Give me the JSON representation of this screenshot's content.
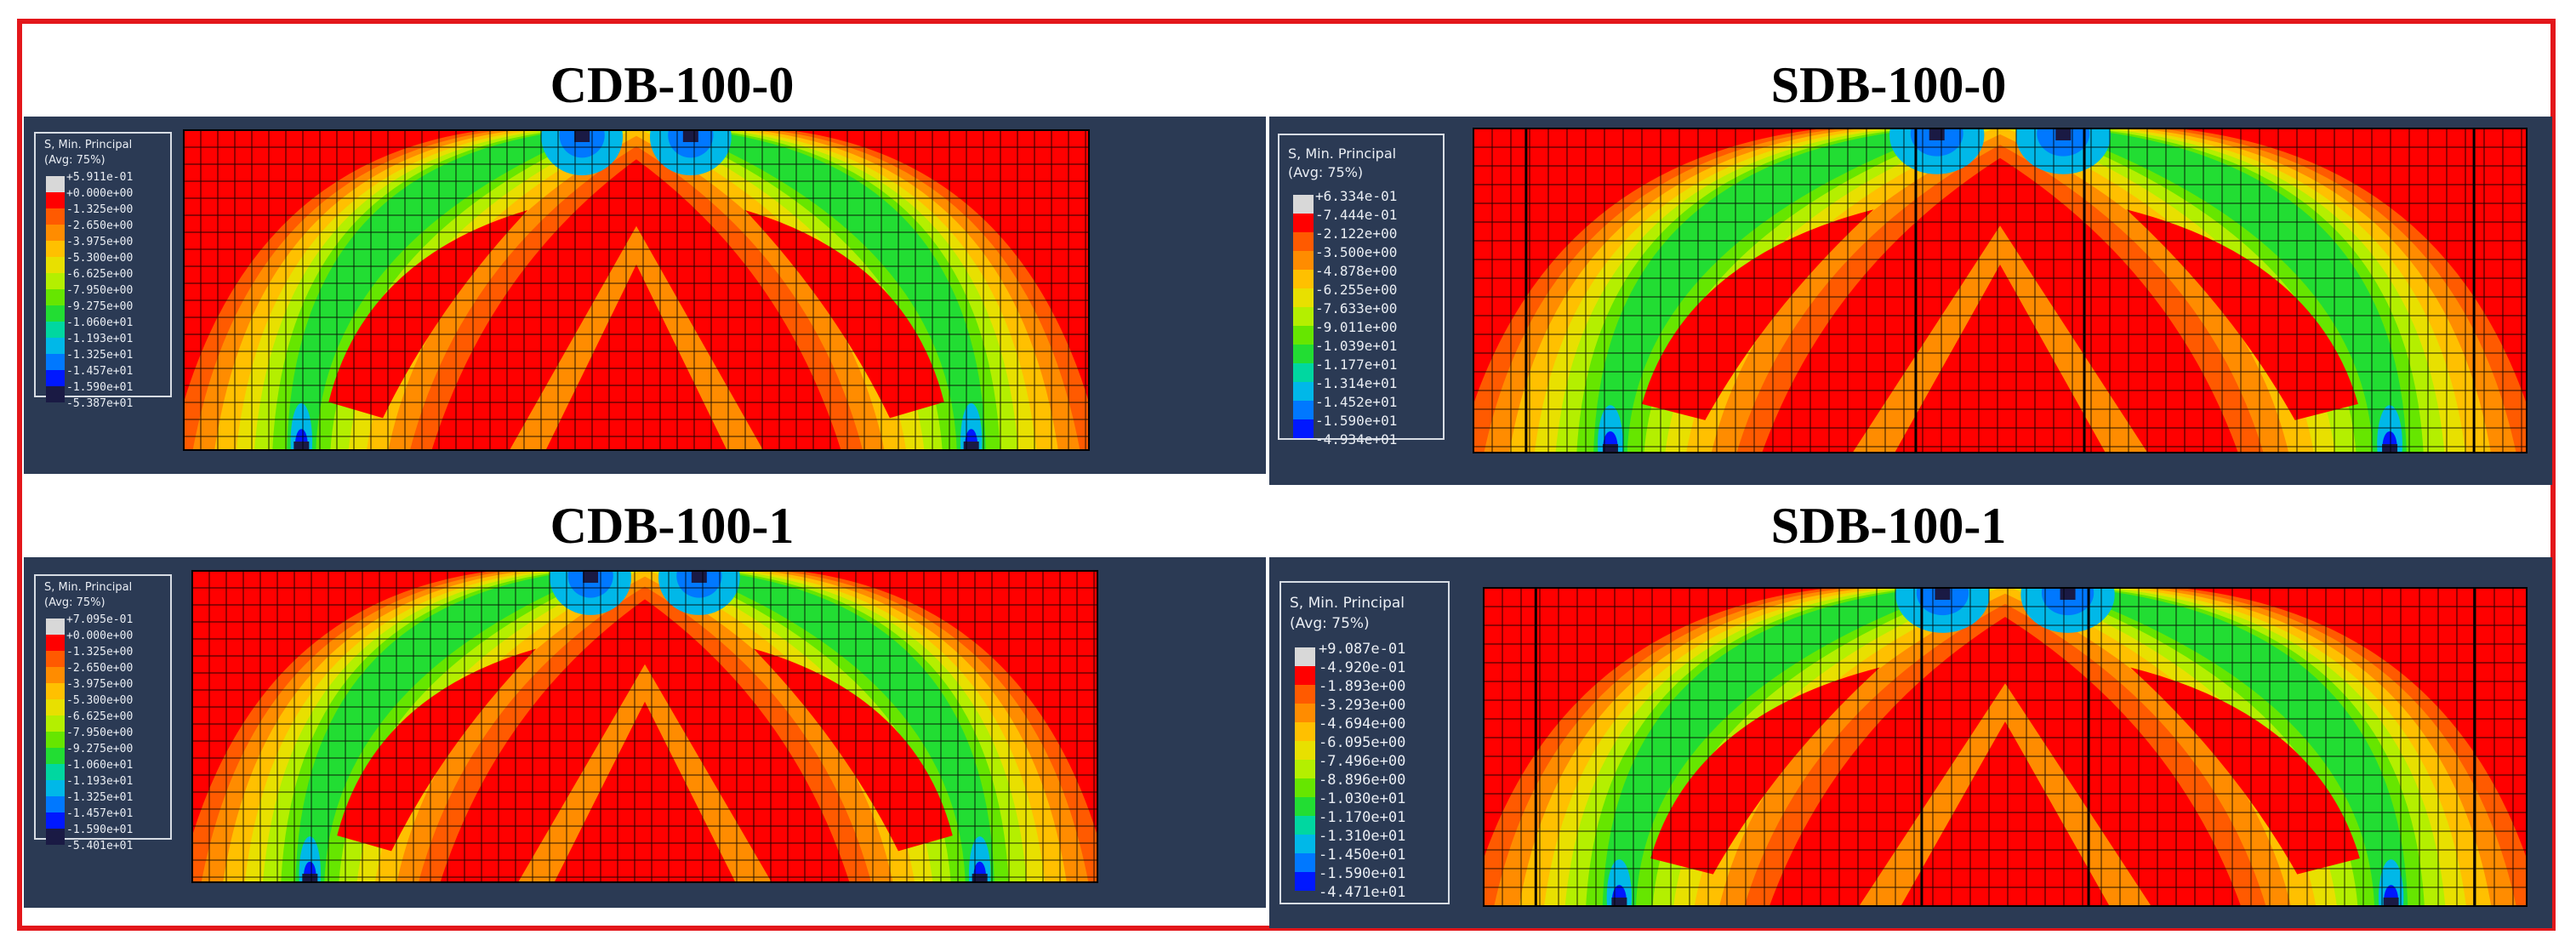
{
  "panels": [
    {
      "key": "cdb0",
      "title": "CDB-100-0",
      "legend": {
        "title_line1": "S, Min. Principal",
        "title_line2": "(Avg: 75%)",
        "values": [
          "+5.911e-01",
          "+0.000e+00",
          "-1.325e+00",
          "-2.650e+00",
          "-3.975e+00",
          "-5.300e+00",
          "-6.625e+00",
          "-7.950e+00",
          "-9.275e+00",
          "-1.060e+01",
          "-1.193e+01",
          "-1.325e+01",
          "-1.457e+01",
          "-1.590e+01",
          "-5.387e+01"
        ]
      }
    },
    {
      "key": "sdb0",
      "title": "SDB-100-0",
      "legend": {
        "title_line1": "S, Min. Principal",
        "title_line2": "(Avg: 75%)",
        "values": [
          "+6.334e-01",
          "-7.444e-01",
          "-2.122e+00",
          "-3.500e+00",
          "-4.878e+00",
          "-6.255e+00",
          "-7.633e+00",
          "-9.011e+00",
          "-1.039e+01",
          "-1.177e+01",
          "-1.314e+01",
          "-1.452e+01",
          "-1.590e+01",
          "-4.934e+01"
        ]
      }
    },
    {
      "key": "cdb1",
      "title": "CDB-100-1",
      "legend": {
        "title_line1": "S, Min. Principal",
        "title_line2": "(Avg: 75%)",
        "values": [
          "+7.095e-01",
          "+0.000e+00",
          "-1.325e+00",
          "-2.650e+00",
          "-3.975e+00",
          "-5.300e+00",
          "-6.625e+00",
          "-7.950e+00",
          "-9.275e+00",
          "-1.060e+01",
          "-1.193e+01",
          "-1.325e+01",
          "-1.457e+01",
          "-1.590e+01",
          "-5.401e+01"
        ]
      }
    },
    {
      "key": "sdb1",
      "title": "SDB-100-1",
      "legend": {
        "title_line1": "S, Min. Principal",
        "title_line2": "(Avg: 75%)",
        "values": [
          "+9.087e-01",
          "-4.920e-01",
          "-1.893e+00",
          "-3.293e+00",
          "-4.694e+00",
          "-6.095e+00",
          "-7.496e+00",
          "-8.896e+00",
          "-1.030e+01",
          "-1.170e+01",
          "-1.310e+01",
          "-1.450e+01",
          "-1.590e+01",
          "-4.471e+01"
        ]
      }
    }
  ],
  "colors": {
    "frame": "#e3171b",
    "panel_bg": "#2b3a54",
    "mesh_line": "#000000",
    "contour_scale": [
      "#d8d8d8",
      "#ff0000",
      "#ff5a00",
      "#ff8c00",
      "#ffc000",
      "#e8e000",
      "#b4ef00",
      "#66e600",
      "#22dd33",
      "#00d7a0",
      "#00b8e8",
      "#0078ff",
      "#0018ff",
      "#1a1a44"
    ]
  }
}
